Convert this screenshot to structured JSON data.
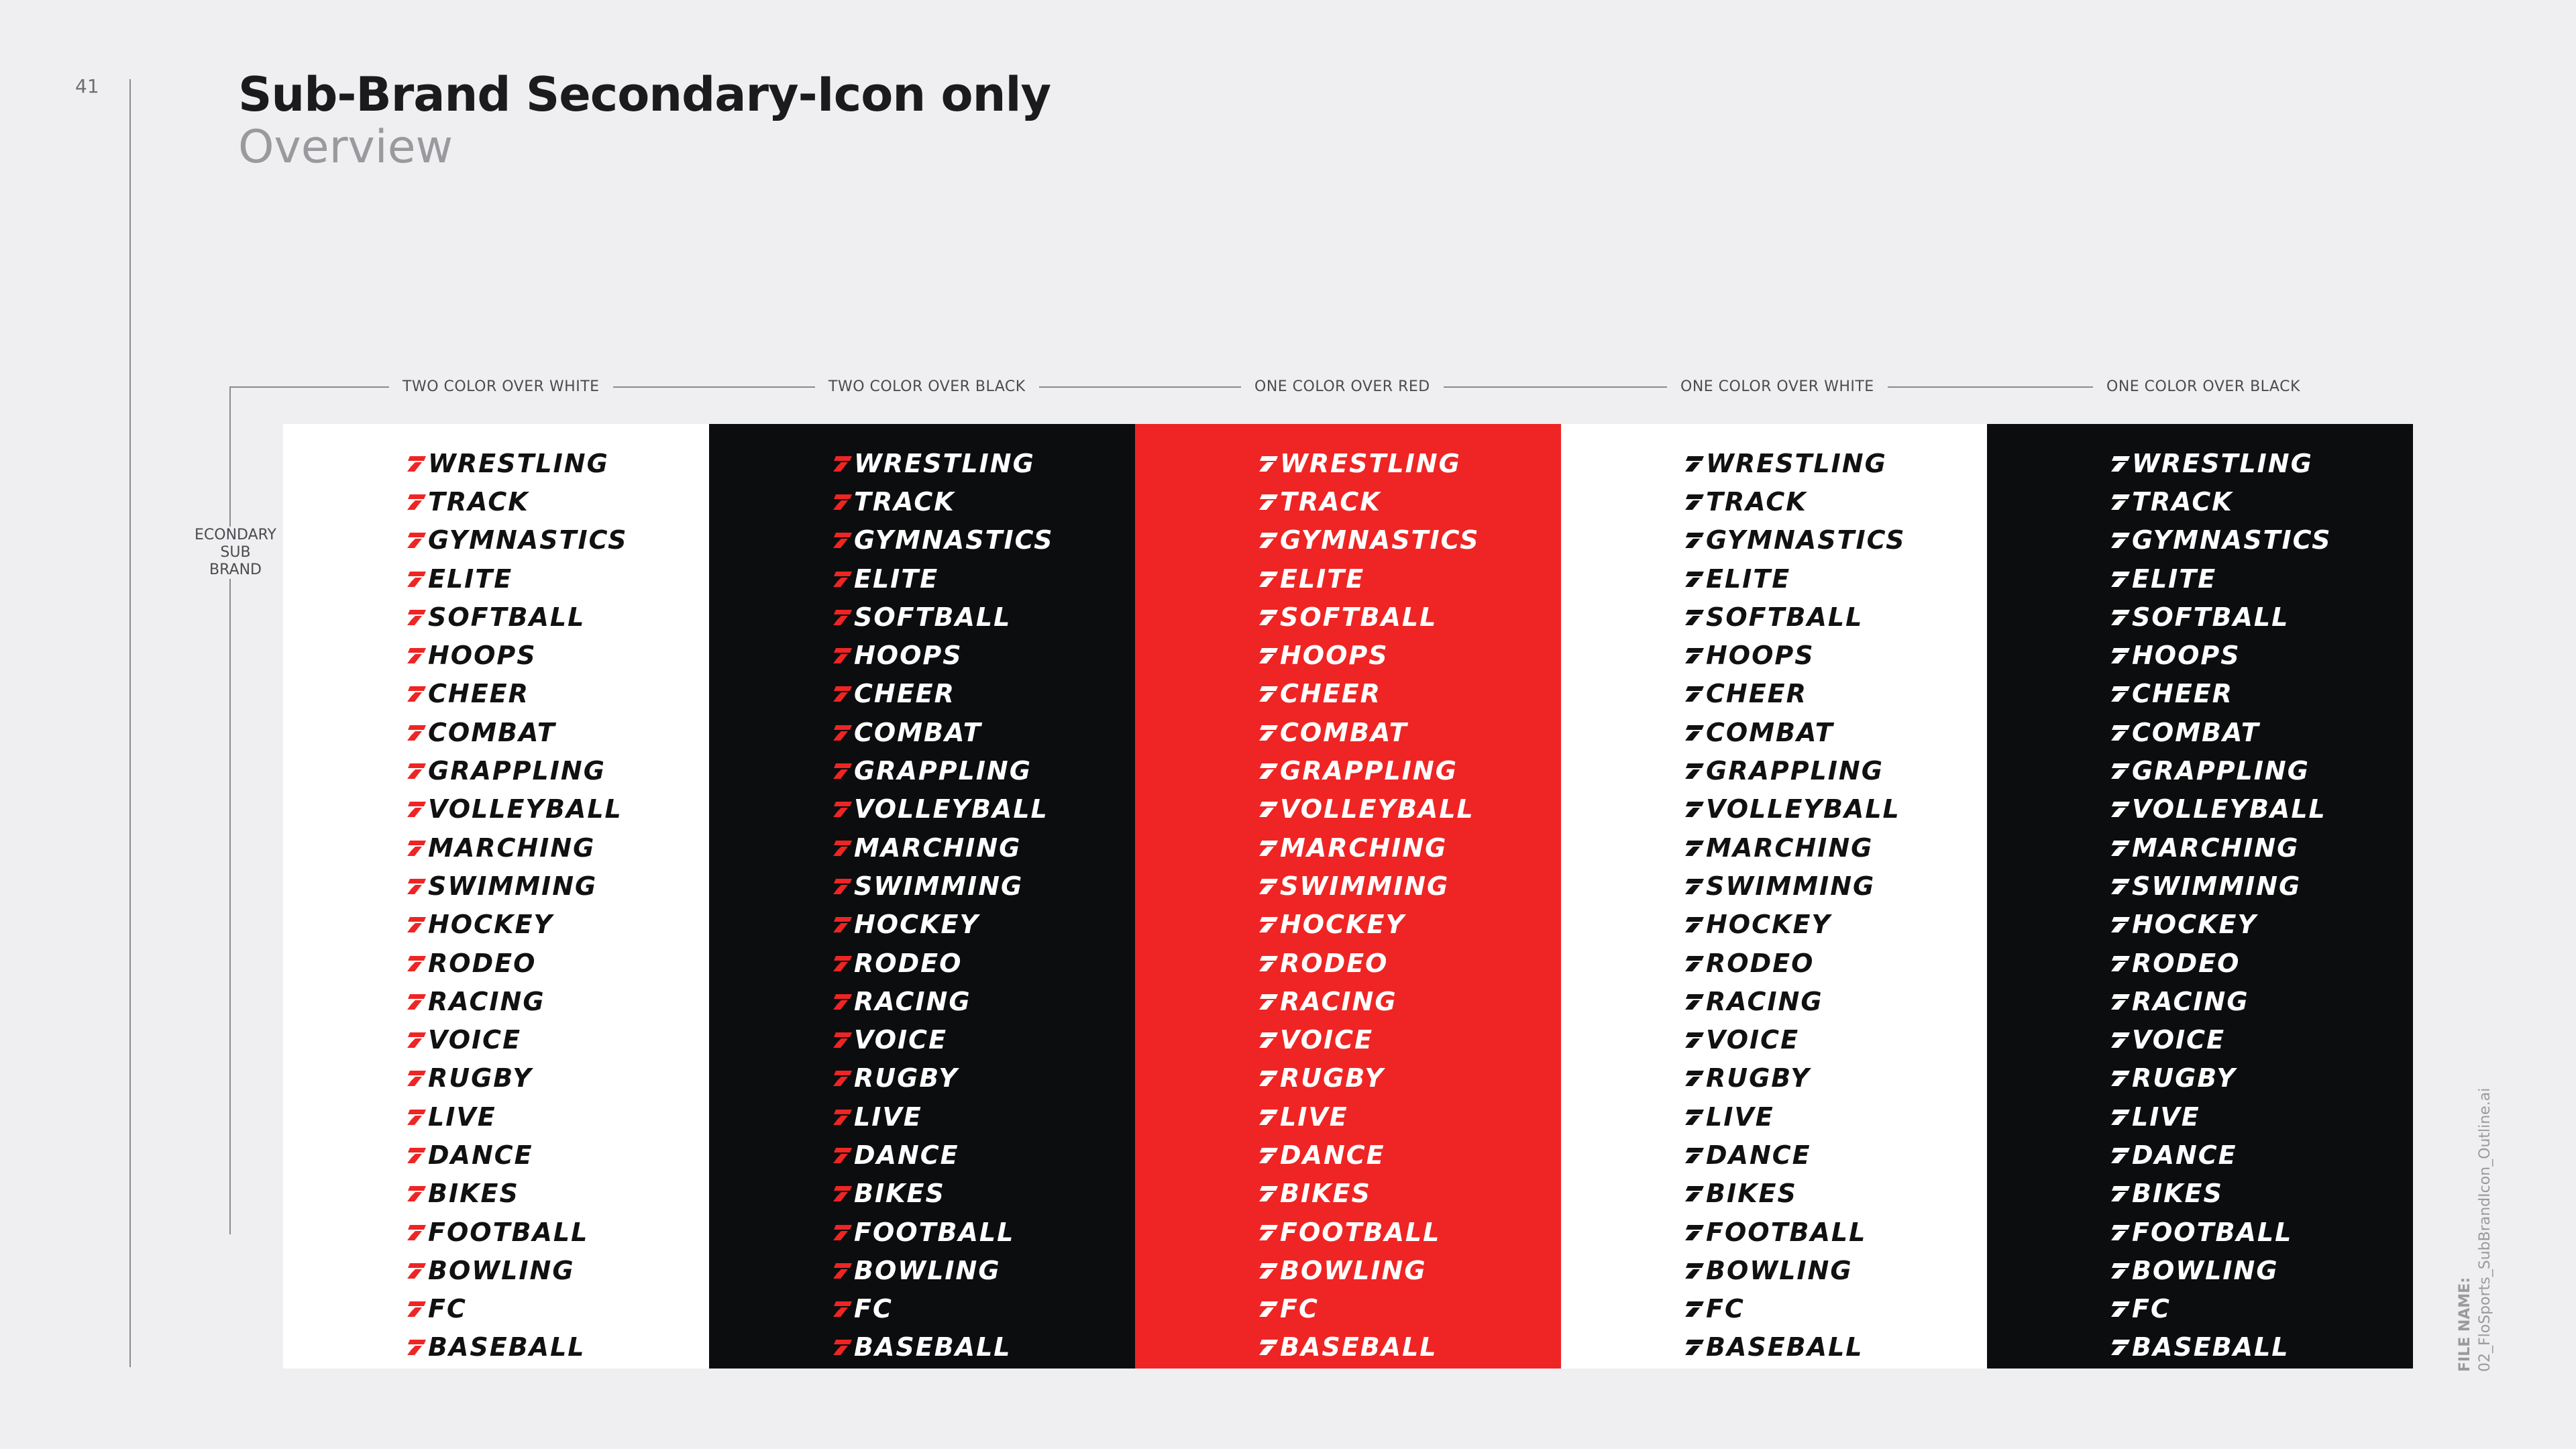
{
  "page": {
    "number": "41",
    "title": "Sub-Brand Secondary-Icon only",
    "subtitle": "Overview"
  },
  "row_label": "ECONDARY\nSUB\nBRAND",
  "columns": [
    {
      "header": "TWO COLOR OVER WHITE",
      "background": "#ffffff",
      "icon_top": "#ee2524",
      "icon_bottom": "#ee2524",
      "text_color": "#111111"
    },
    {
      "header": "TWO COLOR OVER BLACK",
      "background": "#0c0d0e",
      "icon_top": "#ee2524",
      "icon_bottom": "#ee2524",
      "text_color": "#ffffff"
    },
    {
      "header": "ONE COLOR OVER RED",
      "background": "#ee2524",
      "icon_top": "#ffffff",
      "icon_bottom": "#ffffff",
      "text_color": "#ffffff"
    },
    {
      "header": "ONE COLOR OVER WHITE",
      "background": "#ffffff",
      "icon_top": "#111111",
      "icon_bottom": "#111111",
      "text_color": "#111111"
    },
    {
      "header": "ONE COLOR OVER BLACK",
      "background": "#0c0d0e",
      "icon_top": "#ffffff",
      "icon_bottom": "#ffffff",
      "text_color": "#ffffff"
    }
  ],
  "sub_brands": [
    "WRESTLING",
    "TRACK",
    "GYMNASTICS",
    "ELITE",
    "SOFTBALL",
    "HOOPS",
    "CHEER",
    "COMBAT",
    "GRAPPLING",
    "VOLLEYBALL",
    "MARCHING",
    "SWIMMING",
    "HOCKEY",
    "RODEO",
    "RACING",
    "VOICE",
    "RUGBY",
    "LIVE",
    "DANCE",
    "BIKES",
    "FOOTBALL",
    "BOWLING",
    "FC",
    "BASEBALL"
  ],
  "icon": "flo-f-icon",
  "file": {
    "label": "FILE NAME:",
    "value": "02_FloSports_SubBrandIcon_Outline.ai"
  }
}
